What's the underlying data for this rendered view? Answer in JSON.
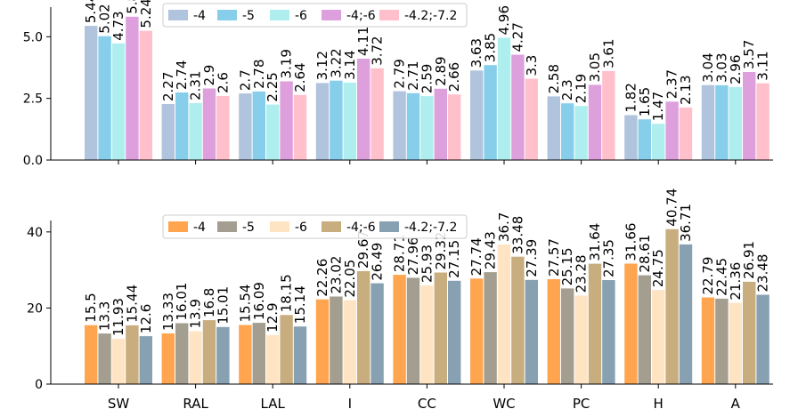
{
  "chart_data": [
    {
      "type": "bar",
      "categories": [
        "SW",
        "RAL",
        "LAL",
        "I",
        "CC",
        "WC",
        "PC",
        "H",
        "A"
      ],
      "series": [
        {
          "name": "-4",
          "color": "#b0c4de",
          "values": [
            5.44,
            2.27,
            2.7,
            3.12,
            2.79,
            3.63,
            2.58,
            1.82,
            3.04
          ]
        },
        {
          "name": "-5",
          "color": "#87ceeb",
          "values": [
            5.02,
            2.74,
            2.78,
            3.22,
            2.71,
            3.85,
            2.3,
            1.65,
            3.03
          ]
        },
        {
          "name": "-6",
          "color": "#afeeee",
          "values": [
            4.73,
            2.31,
            2.25,
            3.14,
            2.59,
            4.96,
            2.19,
            1.47,
            2.96
          ]
        },
        {
          "name": "-4;-6",
          "color": "#dda0dd",
          "values": [
            5.81,
            2.9,
            3.19,
            4.11,
            2.89,
            4.27,
            3.05,
            2.37,
            3.57
          ]
        },
        {
          "name": "-4.2;-7.2",
          "color": "#ffc0cb",
          "values": [
            5.24,
            2.6,
            2.64,
            3.72,
            2.66,
            3.3,
            3.61,
            2.13,
            3.11
          ]
        }
      ],
      "ylim": [
        0,
        6.2
      ],
      "yticks": [
        "0.0",
        "2.5",
        "5.0"
      ],
      "legend_position": "top-center",
      "grid": false
    },
    {
      "type": "bar",
      "categories": [
        "SW",
        "RAL",
        "LAL",
        "I",
        "CC",
        "WC",
        "PC",
        "H",
        "A"
      ],
      "series": [
        {
          "name": "-4",
          "color": "#ffa54f",
          "values": [
            15.5,
            13.33,
            15.54,
            22.26,
            28.71,
            27.74,
            27.57,
            31.66,
            22.79
          ]
        },
        {
          "name": "-5",
          "color": "#a39e8f",
          "values": [
            13.3,
            16.01,
            16.09,
            23.02,
            27.96,
            29.43,
            25.15,
            28.61,
            22.45
          ]
        },
        {
          "name": "-6",
          "color": "#ffe4c4",
          "values": [
            11.93,
            13.9,
            12.9,
            22.05,
            25.93,
            36.7,
            23.28,
            24.75,
            21.36
          ]
        },
        {
          "name": "-4;-6",
          "color": "#c8ad7f",
          "values": [
            15.44,
            16.8,
            18.15,
            29.67,
            29.32,
            33.48,
            31.64,
            40.74,
            26.91
          ]
        },
        {
          "name": "-4.2;-7.2",
          "color": "#87a1b3",
          "values": [
            12.6,
            15.01,
            15.14,
            26.49,
            27.15,
            27.39,
            27.35,
            36.71,
            23.48
          ]
        }
      ],
      "ylim": [
        0,
        43
      ],
      "yticks": [
        "0",
        "20",
        "40"
      ],
      "legend_position": "top-center",
      "grid": false
    }
  ]
}
